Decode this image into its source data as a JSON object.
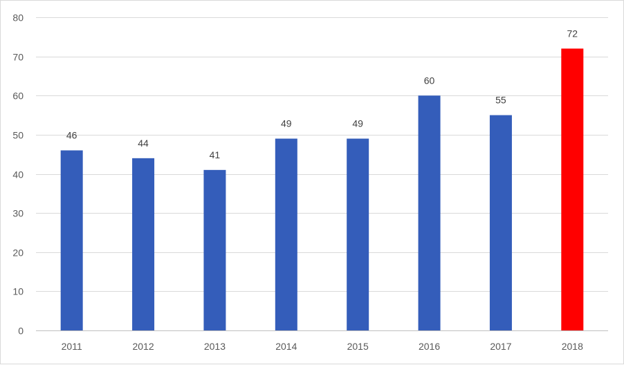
{
  "chart_data": {
    "type": "bar",
    "title": "",
    "xlabel": "",
    "ylabel": "",
    "categories": [
      "2011",
      "2012",
      "2013",
      "2014",
      "2015",
      "2016",
      "2017",
      "2018"
    ],
    "values": [
      46,
      44,
      41,
      49,
      49,
      60,
      55,
      72
    ],
    "value_labels": [
      "46",
      "44",
      "41",
      "49",
      "49",
      "60",
      "55",
      "72"
    ],
    "ylim": [
      0,
      80
    ],
    "yticks": [
      0,
      10,
      20,
      30,
      40,
      50,
      60,
      70,
      80
    ],
    "ytick_labels": [
      "0",
      "10",
      "20",
      "30",
      "40",
      "50",
      "60",
      "70",
      "80"
    ],
    "grid": true,
    "legend": "none",
    "colors": {
      "default_bar": "#345dba",
      "highlight_bar": "#ff0000",
      "gridline": "#d9d9d9",
      "tick_text": "#595959",
      "label_text": "#404040"
    },
    "highlight_category": "2018"
  }
}
